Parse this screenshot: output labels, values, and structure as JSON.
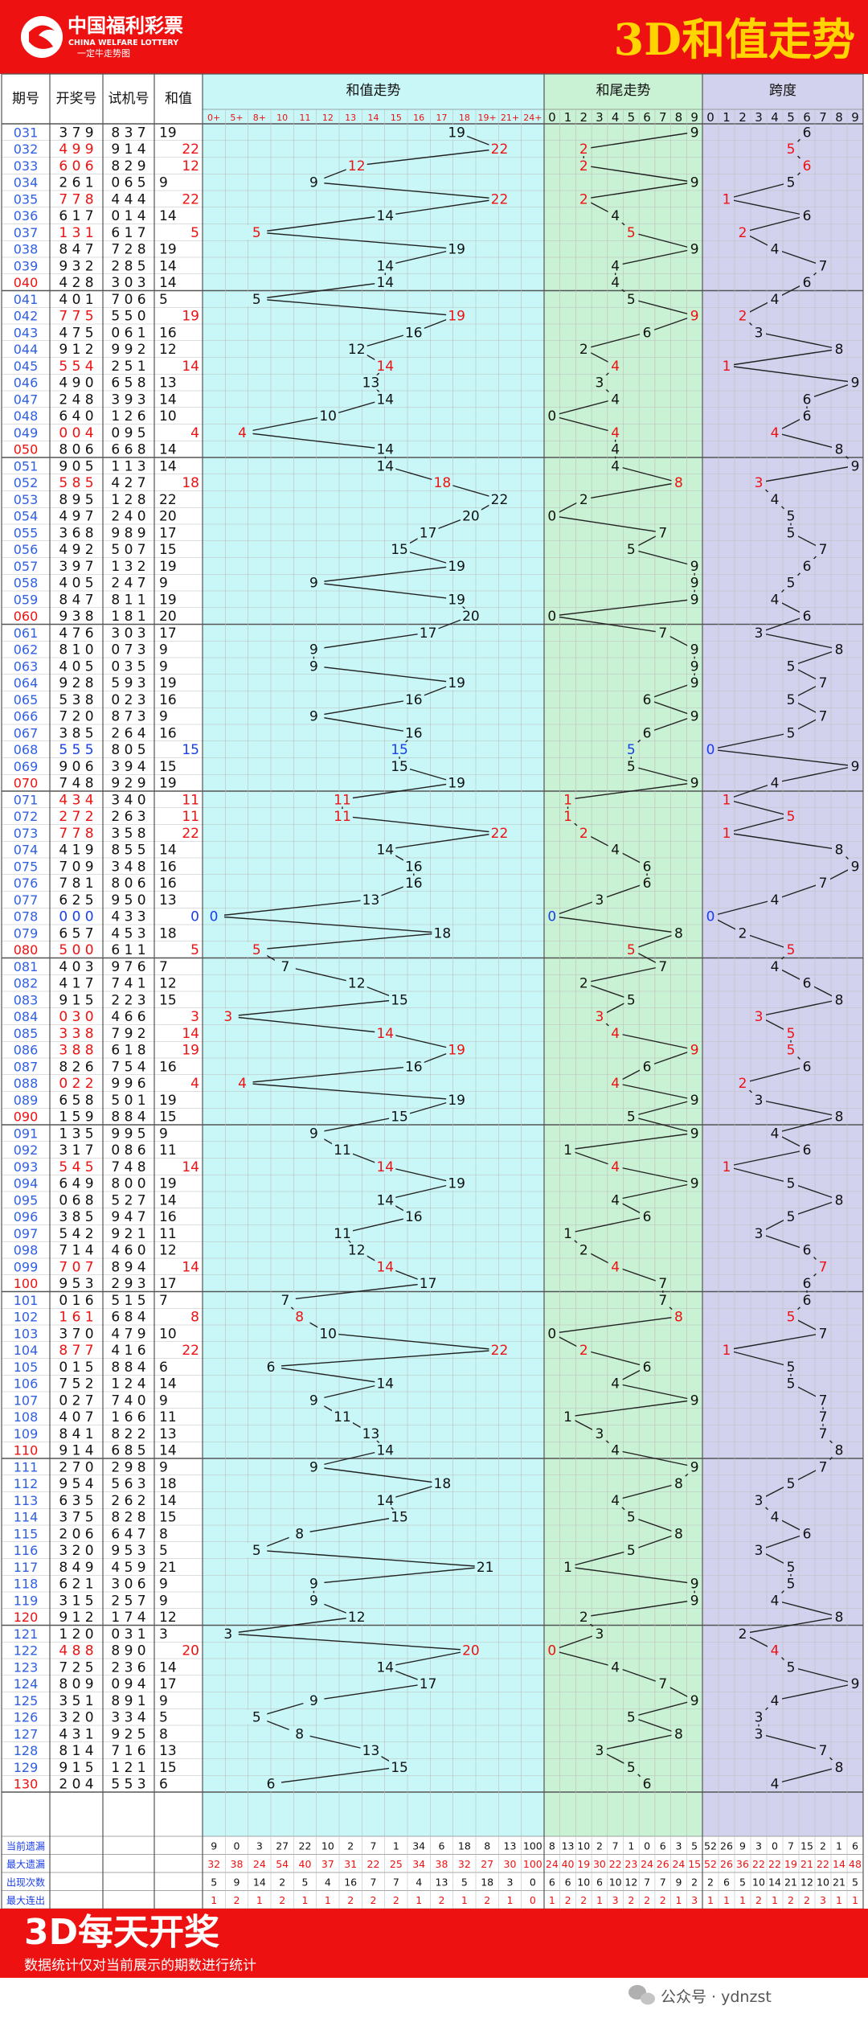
{
  "header": {
    "logo_cn": "中国福利彩票",
    "logo_en": "CHINA WELFARE LOTTERY",
    "logo_slogan": "一定牛走势图",
    "title": "3D和值走势"
  },
  "columns": {
    "period": "期号",
    "draw": "开奖号",
    "trial": "试机号",
    "sum": "和值",
    "sum_trend": "和值走势",
    "tail_trend": "和尾走势",
    "span": "跨度"
  },
  "sum_bins": [
    "0+",
    "5+",
    "8+",
    "10",
    "11",
    "12",
    "13",
    "14",
    "15",
    "16",
    "17",
    "18",
    "19+",
    "21+",
    "24+"
  ],
  "digits": [
    "0",
    "1",
    "2",
    "3",
    "4",
    "5",
    "6",
    "7",
    "8",
    "9"
  ],
  "colors": {
    "red": "#ee1111",
    "blue": "#1a3ee8",
    "black": "#111111",
    "sum_bg": "#c9f7f7",
    "tail_bg": "#c9f1d3",
    "span_bg": "#d2d2ee",
    "banner": "#ee1111",
    "title_gold": "#ffd400"
  },
  "chart_data": {
    "type": "table",
    "rows": [
      {
        "p": "031",
        "d": "379",
        "t": "837",
        "s": 19
      },
      {
        "p": "032",
        "d": "499",
        "t": "914",
        "s": 22
      },
      {
        "p": "033",
        "d": "606",
        "t": "829",
        "s": 12
      },
      {
        "p": "034",
        "d": "261",
        "t": "065",
        "s": 9
      },
      {
        "p": "035",
        "d": "778",
        "t": "444",
        "s": 22
      },
      {
        "p": "036",
        "d": "617",
        "t": "014",
        "s": 14
      },
      {
        "p": "037",
        "d": "131",
        "t": "617",
        "s": 5
      },
      {
        "p": "038",
        "d": "847",
        "t": "728",
        "s": 19
      },
      {
        "p": "039",
        "d": "932",
        "t": "285",
        "s": 14
      },
      {
        "p": "040",
        "d": "428",
        "t": "303",
        "s": 14
      },
      {
        "p": "041",
        "d": "401",
        "t": "706",
        "s": 5
      },
      {
        "p": "042",
        "d": "775",
        "t": "550",
        "s": 19
      },
      {
        "p": "043",
        "d": "475",
        "t": "061",
        "s": 16
      },
      {
        "p": "044",
        "d": "912",
        "t": "992",
        "s": 12
      },
      {
        "p": "045",
        "d": "554",
        "t": "251",
        "s": 14
      },
      {
        "p": "046",
        "d": "490",
        "t": "658",
        "s": 13
      },
      {
        "p": "047",
        "d": "248",
        "t": "393",
        "s": 14
      },
      {
        "p": "048",
        "d": "640",
        "t": "126",
        "s": 10
      },
      {
        "p": "049",
        "d": "004",
        "t": "095",
        "s": 4
      },
      {
        "p": "050",
        "d": "806",
        "t": "668",
        "s": 14
      },
      {
        "p": "051",
        "d": "905",
        "t": "113",
        "s": 14
      },
      {
        "p": "052",
        "d": "585",
        "t": "427",
        "s": 18
      },
      {
        "p": "053",
        "d": "895",
        "t": "128",
        "s": 22
      },
      {
        "p": "054",
        "d": "497",
        "t": "240",
        "s": 20
      },
      {
        "p": "055",
        "d": "368",
        "t": "989",
        "s": 17
      },
      {
        "p": "056",
        "d": "492",
        "t": "507",
        "s": 15
      },
      {
        "p": "057",
        "d": "397",
        "t": "132",
        "s": 19
      },
      {
        "p": "058",
        "d": "405",
        "t": "247",
        "s": 9
      },
      {
        "p": "059",
        "d": "847",
        "t": "811",
        "s": 19
      },
      {
        "p": "060",
        "d": "938",
        "t": "181",
        "s": 20
      },
      {
        "p": "061",
        "d": "476",
        "t": "303",
        "s": 17
      },
      {
        "p": "062",
        "d": "810",
        "t": "073",
        "s": 9
      },
      {
        "p": "063",
        "d": "405",
        "t": "035",
        "s": 9
      },
      {
        "p": "064",
        "d": "928",
        "t": "593",
        "s": 19
      },
      {
        "p": "065",
        "d": "538",
        "t": "023",
        "s": 16
      },
      {
        "p": "066",
        "d": "720",
        "t": "873",
        "s": 9
      },
      {
        "p": "067",
        "d": "385",
        "t": "264",
        "s": 16
      },
      {
        "p": "068",
        "d": "555",
        "t": "805",
        "s": 15
      },
      {
        "p": "069",
        "d": "906",
        "t": "394",
        "s": 15
      },
      {
        "p": "070",
        "d": "748",
        "t": "929",
        "s": 19
      },
      {
        "p": "071",
        "d": "434",
        "t": "340",
        "s": 11
      },
      {
        "p": "072",
        "d": "272",
        "t": "263",
        "s": 11
      },
      {
        "p": "073",
        "d": "778",
        "t": "358",
        "s": 22
      },
      {
        "p": "074",
        "d": "419",
        "t": "855",
        "s": 14
      },
      {
        "p": "075",
        "d": "709",
        "t": "348",
        "s": 16
      },
      {
        "p": "076",
        "d": "781",
        "t": "806",
        "s": 16
      },
      {
        "p": "077",
        "d": "625",
        "t": "950",
        "s": 13
      },
      {
        "p": "078",
        "d": "000",
        "t": "433",
        "s": 0
      },
      {
        "p": "079",
        "d": "657",
        "t": "453",
        "s": 18
      },
      {
        "p": "080",
        "d": "500",
        "t": "611",
        "s": 5
      },
      {
        "p": "081",
        "d": "403",
        "t": "976",
        "s": 7
      },
      {
        "p": "082",
        "d": "417",
        "t": "741",
        "s": 12
      },
      {
        "p": "083",
        "d": "915",
        "t": "223",
        "s": 15
      },
      {
        "p": "084",
        "d": "030",
        "t": "466",
        "s": 3
      },
      {
        "p": "085",
        "d": "338",
        "t": "792",
        "s": 14
      },
      {
        "p": "086",
        "d": "388",
        "t": "618",
        "s": 19
      },
      {
        "p": "087",
        "d": "826",
        "t": "754",
        "s": 16
      },
      {
        "p": "088",
        "d": "022",
        "t": "996",
        "s": 4
      },
      {
        "p": "089",
        "d": "658",
        "t": "501",
        "s": 19
      },
      {
        "p": "090",
        "d": "159",
        "t": "884",
        "s": 15
      },
      {
        "p": "091",
        "d": "135",
        "t": "995",
        "s": 9
      },
      {
        "p": "092",
        "d": "317",
        "t": "086",
        "s": 11
      },
      {
        "p": "093",
        "d": "545",
        "t": "748",
        "s": 14
      },
      {
        "p": "094",
        "d": "649",
        "t": "800",
        "s": 19
      },
      {
        "p": "095",
        "d": "068",
        "t": "527",
        "s": 14
      },
      {
        "p": "096",
        "d": "385",
        "t": "947",
        "s": 16
      },
      {
        "p": "097",
        "d": "542",
        "t": "921",
        "s": 11
      },
      {
        "p": "098",
        "d": "714",
        "t": "460",
        "s": 12
      },
      {
        "p": "099",
        "d": "707",
        "t": "894",
        "s": 14
      },
      {
        "p": "100",
        "d": "953",
        "t": "293",
        "s": 17
      },
      {
        "p": "101",
        "d": "016",
        "t": "515",
        "s": 7
      },
      {
        "p": "102",
        "d": "161",
        "t": "684",
        "s": 8
      },
      {
        "p": "103",
        "d": "370",
        "t": "479",
        "s": 10
      },
      {
        "p": "104",
        "d": "877",
        "t": "416",
        "s": 22
      },
      {
        "p": "105",
        "d": "015",
        "t": "884",
        "s": 6
      },
      {
        "p": "106",
        "d": "752",
        "t": "124",
        "s": 14
      },
      {
        "p": "107",
        "d": "027",
        "t": "740",
        "s": 9
      },
      {
        "p": "108",
        "d": "407",
        "t": "166",
        "s": 11
      },
      {
        "p": "109",
        "d": "841",
        "t": "822",
        "s": 13
      },
      {
        "p": "110",
        "d": "914",
        "t": "685",
        "s": 14
      },
      {
        "p": "111",
        "d": "270",
        "t": "298",
        "s": 9
      },
      {
        "p": "112",
        "d": "954",
        "t": "563",
        "s": 18
      },
      {
        "p": "113",
        "d": "635",
        "t": "262",
        "s": 14
      },
      {
        "p": "114",
        "d": "375",
        "t": "828",
        "s": 15
      },
      {
        "p": "115",
        "d": "206",
        "t": "647",
        "s": 8
      },
      {
        "p": "116",
        "d": "320",
        "t": "953",
        "s": 5
      },
      {
        "p": "117",
        "d": "849",
        "t": "459",
        "s": 21
      },
      {
        "p": "118",
        "d": "621",
        "t": "306",
        "s": 9
      },
      {
        "p": "119",
        "d": "315",
        "t": "257",
        "s": 9
      },
      {
        "p": "120",
        "d": "912",
        "t": "174",
        "s": 12
      },
      {
        "p": "121",
        "d": "120",
        "t": "031",
        "s": 3
      },
      {
        "p": "122",
        "d": "488",
        "t": "890",
        "s": 20
      },
      {
        "p": "123",
        "d": "725",
        "t": "236",
        "s": 14
      },
      {
        "p": "124",
        "d": "809",
        "t": "094",
        "s": 17
      },
      {
        "p": "125",
        "d": "351",
        "t": "891",
        "s": 9
      },
      {
        "p": "126",
        "d": "320",
        "t": "334",
        "s": 5
      },
      {
        "p": "127",
        "d": "431",
        "t": "925",
        "s": 8
      },
      {
        "p": "128",
        "d": "814",
        "t": "716",
        "s": 13
      },
      {
        "p": "129",
        "d": "915",
        "t": "121",
        "s": 15
      },
      {
        "p": "130",
        "d": "204",
        "t": "553",
        "s": 6
      }
    ],
    "stats": [
      {
        "label": "当前遗漏",
        "sum": [
          "9",
          "0",
          "3",
          "27",
          "22",
          "10",
          "2",
          "7",
          "1",
          "34",
          "6",
          "18",
          "8",
          "13",
          "100"
        ],
        "tail": [
          "8",
          "13",
          "10",
          "2",
          "7",
          "1",
          "0",
          "6",
          "3",
          "5"
        ],
        "span": [
          "52",
          "26",
          "9",
          "3",
          "0",
          "7",
          "15",
          "2",
          "1",
          "6"
        ]
      },
      {
        "label": "最大遗漏",
        "sum": [
          "32",
          "38",
          "24",
          "54",
          "40",
          "37",
          "31",
          "22",
          "25",
          "34",
          "38",
          "32",
          "27",
          "30",
          "100"
        ],
        "tail": [
          "24",
          "40",
          "19",
          "30",
          "22",
          "23",
          "24",
          "26",
          "24",
          "15"
        ],
        "span": [
          "52",
          "26",
          "36",
          "22",
          "22",
          "19",
          "21",
          "22",
          "14",
          "48"
        ]
      },
      {
        "label": "出现次数",
        "sum": [
          "5",
          "9",
          "14",
          "2",
          "5",
          "4",
          "16",
          "7",
          "7",
          "4",
          "13",
          "5",
          "18",
          "3",
          "0"
        ],
        "tail": [
          "6",
          "6",
          "10",
          "6",
          "10",
          "12",
          "7",
          "7",
          "9",
          "2"
        ],
        "span": [
          "2",
          "6",
          "5",
          "10",
          "14",
          "21",
          "12",
          "10",
          "21",
          "5"
        ]
      },
      {
        "label": "最大连出",
        "sum": [
          "1",
          "2",
          "1",
          "2",
          "1",
          "1",
          "2",
          "2",
          "2",
          "1",
          "2",
          "1",
          "2",
          "1",
          "0"
        ],
        "tail": [
          "1",
          "2",
          "2",
          "1",
          "3",
          "2",
          "2",
          "2",
          "1",
          "3"
        ],
        "span": [
          "1",
          "1",
          "1",
          "2",
          "1",
          "2",
          "2",
          "3",
          "1",
          "1"
        ]
      }
    ]
  },
  "footer": {
    "headline": "3D每天开奖",
    "note": "数据统计仅对当前展示的期数进行统计",
    "watermark": "公众号 · ydnzst"
  }
}
